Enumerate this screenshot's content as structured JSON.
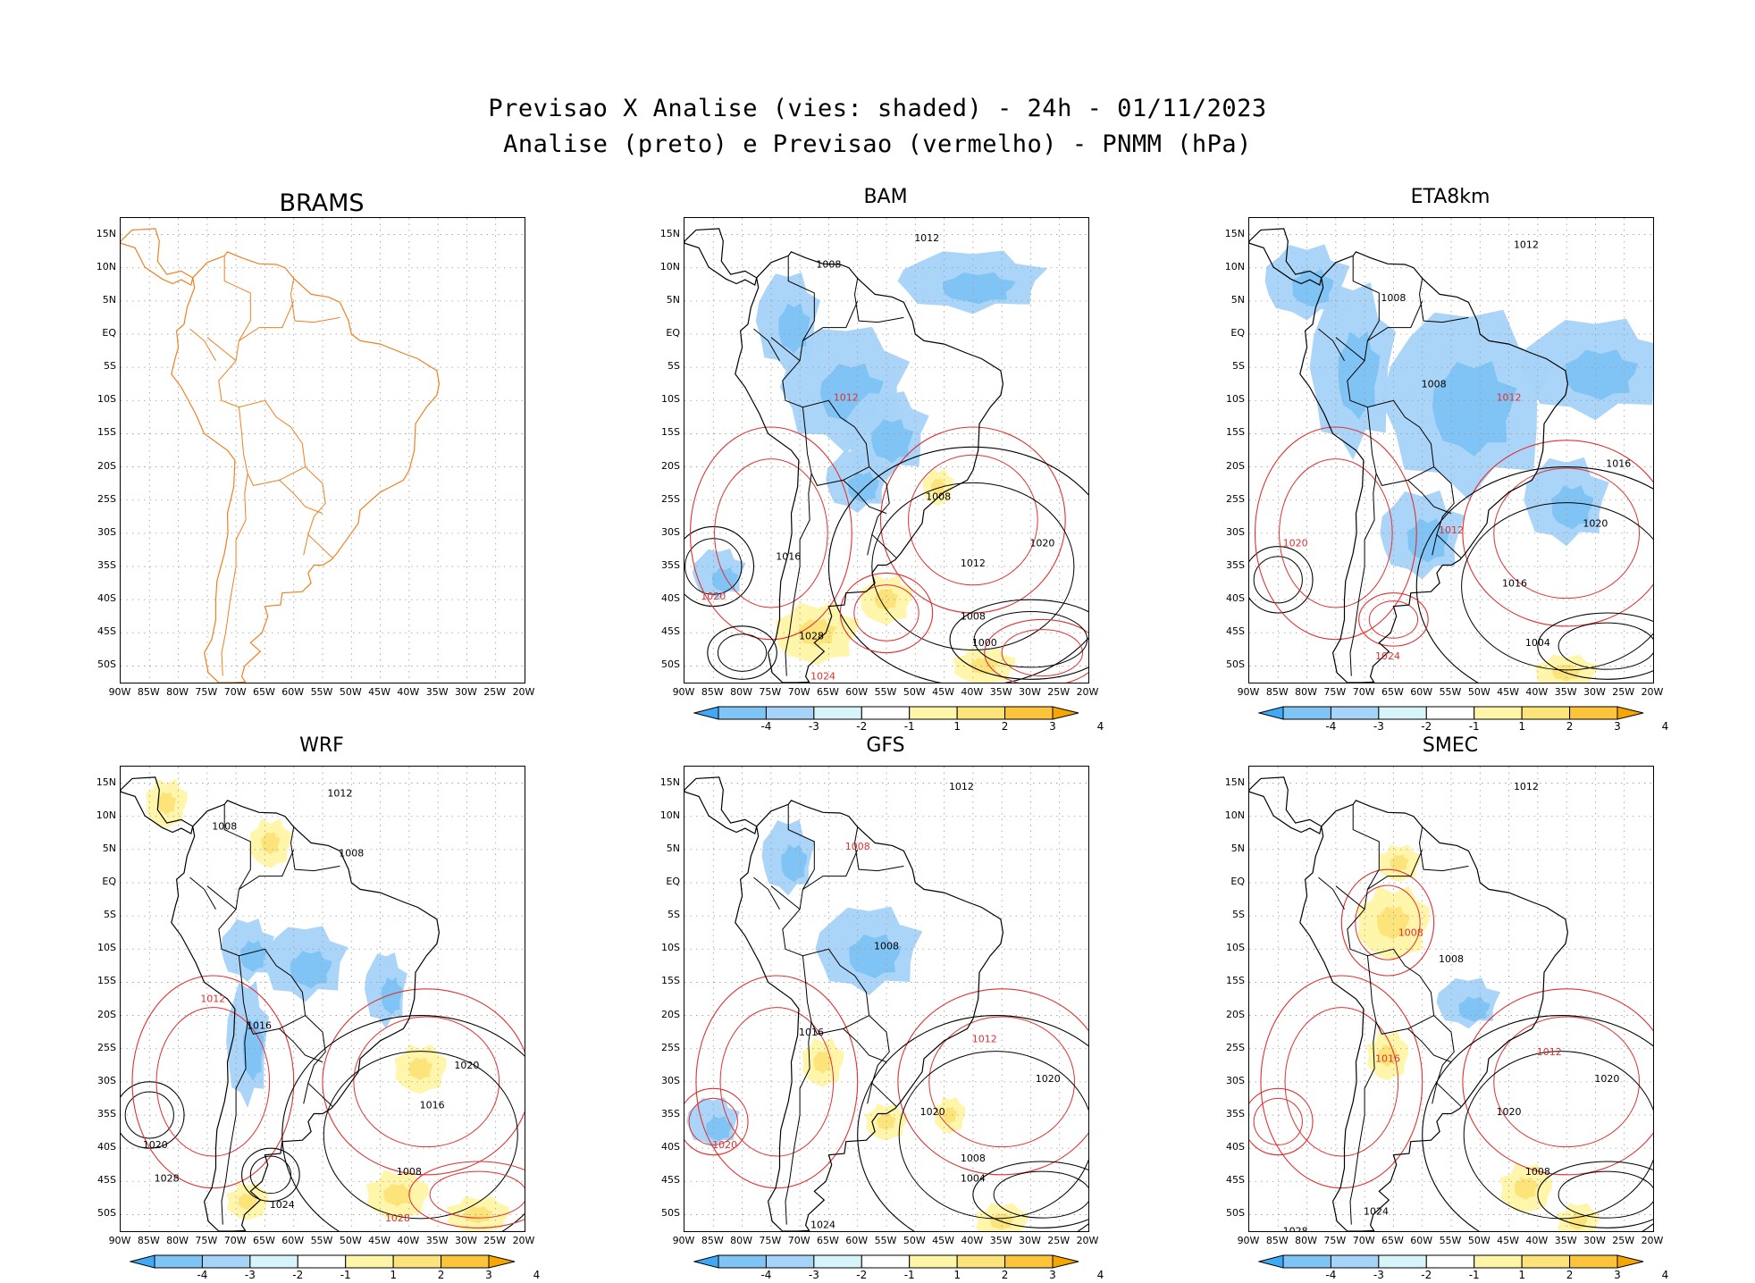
{
  "header": {
    "line1": "Previsao X Analise (vies: shaded) - 24h - 01/11/2023",
    "line2": "Analise (preto) e Previsao (vermelho) - PNMM (hPa)"
  },
  "axes": {
    "lat_labels": [
      "15N",
      "10N",
      "5N",
      "EQ",
      "5S",
      "10S",
      "15S",
      "20S",
      "25S",
      "30S",
      "35S",
      "40S",
      "45S",
      "50S"
    ],
    "lon_labels": [
      "90W",
      "85W",
      "80W",
      "75W",
      "70W",
      "65W",
      "60W",
      "55W",
      "50W",
      "45W",
      "40W",
      "35W",
      "30W",
      "25W",
      "20W"
    ],
    "lat_range": [
      -52.5,
      17.5
    ],
    "lon_range": [
      -90,
      -20
    ]
  },
  "colorbar": {
    "ticks": [
      "-4",
      "-3",
      "-2",
      "-1",
      "1",
      "2",
      "3",
      "4"
    ],
    "colors": [
      "#3fa9f5",
      "#7fc4f5",
      "#a6d3f8",
      "#d6f4fa",
      "#ffffff",
      "#fff5a8",
      "#fde47a",
      "#fbc43a",
      "#f7a600"
    ]
  },
  "colors": {
    "analysis": "#000000",
    "forecast": "#e03030",
    "coast_brams": "#f08020",
    "negative_bias": "#8ec9f2",
    "positive_bias": "#fde47a"
  },
  "contour_labels": [
    "1000",
    "1004",
    "1008",
    "1012",
    "1016",
    "1020",
    "1024",
    "1028"
  ],
  "panels": [
    {
      "id": "brams",
      "title": "BRAMS",
      "has_bias": false,
      "has_colorbar": false
    },
    {
      "id": "bam",
      "title": "BAM",
      "has_bias": true,
      "has_colorbar": true
    },
    {
      "id": "eta8km",
      "title": "ETA8km",
      "has_bias": true,
      "has_colorbar": true
    },
    {
      "id": "wrf",
      "title": "WRF",
      "has_bias": true,
      "has_colorbar": true
    },
    {
      "id": "gfs",
      "title": "GFS",
      "has_bias": true,
      "has_colorbar": true
    },
    {
      "id": "smec",
      "title": "SMEC",
      "has_bias": true,
      "has_colorbar": true
    }
  ]
}
